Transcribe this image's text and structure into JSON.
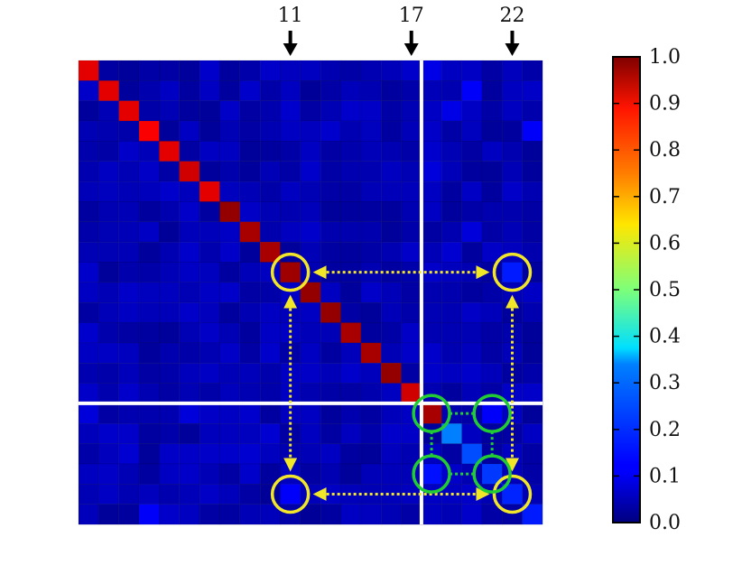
{
  "chart_data": {
    "type": "heatmap",
    "rows": 23,
    "cols": 23,
    "diagonal_values": [
      0.9,
      0.9,
      0.9,
      0.88,
      0.9,
      0.92,
      0.9,
      0.98,
      0.96,
      0.96,
      0.97,
      0.98,
      0.98,
      0.96,
      0.96,
      0.98,
      0.92,
      0.96,
      0.25,
      0.2,
      0.18,
      0.16,
      0.15
    ],
    "off_diagonal_cells": [
      {
        "row": 10,
        "col": 21,
        "value": 0.15
      },
      {
        "row": 21,
        "col": 10,
        "value": 0.12
      },
      {
        "row": 17,
        "col": 20,
        "value": 0.12
      },
      {
        "row": 20,
        "col": 17,
        "value": 0.14
      },
      {
        "row": 0,
        "col": 17,
        "value": 0.1
      },
      {
        "row": 1,
        "col": 19,
        "value": 0.12
      },
      {
        "row": 2,
        "col": 18,
        "value": 0.1
      },
      {
        "row": 3,
        "col": 22,
        "value": 0.12
      },
      {
        "row": 5,
        "col": 17,
        "value": 0.09
      },
      {
        "row": 8,
        "col": 19,
        "value": 0.09
      },
      {
        "row": 9,
        "col": 18,
        "value": 0.08
      },
      {
        "row": 17,
        "col": 0,
        "value": 0.09
      },
      {
        "row": 17,
        "col": 5,
        "value": 0.09
      },
      {
        "row": 18,
        "col": 9,
        "value": 0.08
      },
      {
        "row": 19,
        "col": 2,
        "value": 0.08
      },
      {
        "row": 19,
        "col": 8,
        "value": 0.08
      },
      {
        "row": 20,
        "col": 1,
        "value": 0.07
      },
      {
        "row": 21,
        "col": 3,
        "value": 0.06
      },
      {
        "row": 22,
        "col": 3,
        "value": 0.12
      },
      {
        "row": 22,
        "col": 22,
        "value": 0.15
      }
    ],
    "background_value": 0.05,
    "top_arrow_labels": [
      {
        "label": "11",
        "col": 10
      },
      {
        "label": "17",
        "col": 16
      },
      {
        "label": "22",
        "col": 21
      }
    ],
    "divider_after_index": 16,
    "colorbar": {
      "min": 0.0,
      "max": 1.0,
      "ticks": [
        "0.0",
        "0.1",
        "0.2",
        "0.3",
        "0.4",
        "0.5",
        "0.6",
        "0.7",
        "0.8",
        "0.9",
        "1.0"
      ],
      "colormap": "jet"
    },
    "yellow_circles": [
      {
        "row": 10,
        "col": 10
      },
      {
        "row": 10,
        "col": 21
      },
      {
        "row": 21,
        "col": 10
      },
      {
        "row": 21,
        "col": 21
      }
    ],
    "green_circles": [
      {
        "row": 17,
        "col": 17
      },
      {
        "row": 17,
        "col": 20
      },
      {
        "row": 20,
        "col": 17
      },
      {
        "row": 20,
        "col": 20
      }
    ],
    "colors": {
      "yellow": "#f2e629",
      "green": "#22cc33",
      "divider": "#ffffff",
      "arrow": "#000000"
    }
  }
}
